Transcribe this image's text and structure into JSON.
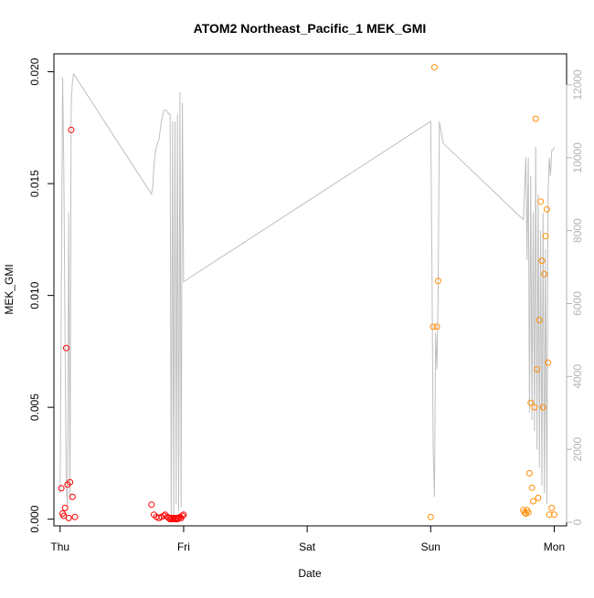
{
  "chart_data": {
    "type": "scatter",
    "title": "ATOM2 Northeast_Pacific_1 MEK_GMI",
    "xlabel": "Date",
    "ylabel": "MEK_GMI",
    "x_unit": "days since Thu 00:00 (Thu=0 ... Mon=4)",
    "xlim": [
      -0.05,
      4.1
    ],
    "ylim": [
      -0.0003,
      0.0208
    ],
    "y2lim": [
      -100,
      12850
    ],
    "x_ticks": [
      {
        "value": 0,
        "label": "Thu"
      },
      {
        "value": 1,
        "label": "Fri"
      },
      {
        "value": 2,
        "label": "Sat"
      },
      {
        "value": 3,
        "label": "Sun"
      },
      {
        "value": 4,
        "label": "Mon"
      }
    ],
    "y_ticks": [
      {
        "value": 0.0,
        "label": "0.000"
      },
      {
        "value": 0.005,
        "label": "0.005"
      },
      {
        "value": 0.01,
        "label": "0.010"
      },
      {
        "value": 0.015,
        "label": "0.015"
      },
      {
        "value": 0.02,
        "label": "0.020"
      }
    ],
    "y2_ticks": [
      {
        "value": 0,
        "label": "0"
      },
      {
        "value": 2000,
        "label": "2000"
      },
      {
        "value": 4000,
        "label": "4000"
      },
      {
        "value": 6000,
        "label": "6000"
      },
      {
        "value": 8000,
        "label": "8000"
      },
      {
        "value": 10000,
        "label": "10000"
      },
      {
        "value": 12000,
        "label": "12000"
      }
    ],
    "colors": {
      "red_series": "#ff0000",
      "orange_series": "#ff8c00",
      "altitude_line": "#bfbfbf",
      "axis": "#000000",
      "right_axis": "#b3b3b3"
    },
    "series": [
      {
        "name": "",
        "color": "#ff0000",
        "marker": "open-circle",
        "points": [
          {
            "x": 0.01,
            "y": 0.00138
          },
          {
            "x": 0.02,
            "y": 0.00025
          },
          {
            "x": 0.03,
            "y": 0.00015
          },
          {
            "x": 0.04,
            "y": 0.0005
          },
          {
            "x": 0.05,
            "y": 0.00765
          },
          {
            "x": 0.06,
            "y": 0.00155
          },
          {
            "x": 0.07,
            "y": 5e-05
          },
          {
            "x": 0.08,
            "y": 0.00165
          },
          {
            "x": 0.09,
            "y": 0.0174
          },
          {
            "x": 0.1,
            "y": 0.001
          },
          {
            "x": 0.12,
            "y": 0.0001
          },
          {
            "x": 0.74,
            "y": 0.00065
          },
          {
            "x": 0.76,
            "y": 0.0002
          },
          {
            "x": 0.78,
            "y": 0.0001
          },
          {
            "x": 0.8,
            "y": 5e-05
          },
          {
            "x": 0.82,
            "y": 0.0001
          },
          {
            "x": 0.84,
            "y": 0.00015
          },
          {
            "x": 0.85,
            "y": 0.0002
          },
          {
            "x": 0.87,
            "y": 0.0001
          },
          {
            "x": 0.88,
            "y": 5e-05
          },
          {
            "x": 0.89,
            "y": 0.0
          },
          {
            "x": 0.9,
            "y": 5e-05
          },
          {
            "x": 0.91,
            "y": 0.0
          },
          {
            "x": 0.92,
            "y": 5e-05
          },
          {
            "x": 0.93,
            "y": 0.0
          },
          {
            "x": 0.94,
            "y": 5e-05
          },
          {
            "x": 0.95,
            "y": 0.0
          },
          {
            "x": 0.96,
            "y": 5e-05
          },
          {
            "x": 0.97,
            "y": 0.0001
          },
          {
            "x": 0.98,
            "y": 5e-05
          },
          {
            "x": 0.99,
            "y": 0.00015
          },
          {
            "x": 1.0,
            "y": 0.0002
          }
        ]
      },
      {
        "name": "",
        "color": "#ff8c00",
        "marker": "open-circle",
        "points": [
          {
            "x": 3.0,
            "y": 0.0001
          },
          {
            "x": 3.02,
            "y": 0.0086
          },
          {
            "x": 3.03,
            "y": 0.0202
          },
          {
            "x": 3.05,
            "y": 0.0086
          },
          {
            "x": 3.06,
            "y": 0.01065
          },
          {
            "x": 3.75,
            "y": 0.0004
          },
          {
            "x": 3.76,
            "y": 0.0003
          },
          {
            "x": 3.77,
            "y": 0.00025
          },
          {
            "x": 3.78,
            "y": 0.0004
          },
          {
            "x": 3.79,
            "y": 0.0003
          },
          {
            "x": 3.8,
            "y": 0.00205
          },
          {
            "x": 3.81,
            "y": 0.0052
          },
          {
            "x": 3.82,
            "y": 0.0014
          },
          {
            "x": 3.83,
            "y": 0.0008
          },
          {
            "x": 3.84,
            "y": 0.005
          },
          {
            "x": 3.85,
            "y": 0.0179
          },
          {
            "x": 3.86,
            "y": 0.0067
          },
          {
            "x": 3.87,
            "y": 0.00095
          },
          {
            "x": 3.88,
            "y": 0.0089
          },
          {
            "x": 3.89,
            "y": 0.0142
          },
          {
            "x": 3.9,
            "y": 0.01155
          },
          {
            "x": 3.91,
            "y": 0.005
          },
          {
            "x": 3.92,
            "y": 0.01095
          },
          {
            "x": 3.93,
            "y": 0.01265
          },
          {
            "x": 3.94,
            "y": 0.01385
          },
          {
            "x": 3.95,
            "y": 0.007
          },
          {
            "x": 3.96,
            "y": 0.0002
          },
          {
            "x": 3.98,
            "y": 0.0005
          },
          {
            "x": 4.0,
            "y": 0.0002
          }
        ]
      }
    ],
    "altitude_line": {
      "axis": "right",
      "color": "#bfbfbf",
      "x": [
        0.0,
        0.02,
        0.03,
        0.04,
        0.05,
        0.06,
        0.07,
        0.08,
        0.09,
        0.1,
        0.11,
        0.74,
        0.75,
        0.76,
        0.77,
        0.78,
        0.8,
        0.82,
        0.84,
        0.86,
        0.88,
        0.89,
        0.9,
        0.91,
        0.92,
        0.93,
        0.94,
        0.95,
        0.96,
        0.97,
        0.98,
        0.99,
        1.0,
        3.0,
        3.01,
        3.02,
        3.03,
        3.04,
        3.05,
        3.06,
        3.07,
        3.08,
        3.09,
        3.1,
        3.75,
        3.77,
        3.78,
        3.79,
        3.8,
        3.81,
        3.82,
        3.83,
        3.84,
        3.85,
        3.86,
        3.87,
        3.88,
        3.89,
        3.9,
        3.91,
        3.92,
        3.93,
        3.94,
        3.95,
        3.96,
        3.97,
        3.98,
        3.99,
        4.0
      ],
      "y": [
        800,
        12200,
        9800,
        5000,
        1000,
        400,
        8500,
        600,
        11500,
        12100,
        12300,
        9000,
        9200,
        9800,
        10100,
        10300,
        10500,
        11000,
        11300,
        11300,
        11200,
        11200,
        200,
        11000,
        200,
        11000,
        500,
        11200,
        300,
        11800,
        400,
        11500,
        6600,
        11000,
        7000,
        2000,
        700,
        5200,
        4200,
        6200,
        11000,
        10800,
        10600,
        10400,
        8300,
        10000,
        7200,
        10000,
        3000,
        9500,
        2800,
        8500,
        2500,
        10300,
        2000,
        9000,
        1500,
        8000,
        1000,
        8500,
        800,
        7500,
        500,
        9000,
        10000,
        9500,
        10200,
        10200,
        10300
      ]
    }
  }
}
